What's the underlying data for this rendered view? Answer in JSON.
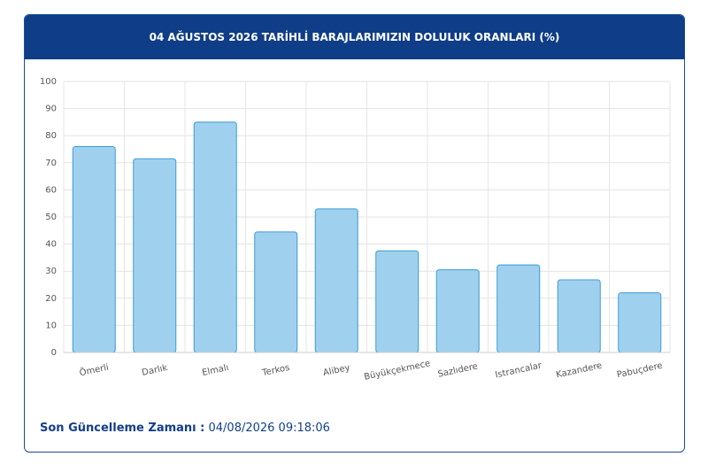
{
  "chart_data": {
    "type": "bar",
    "title": "04 AĞUSTOS 2026 TARİHLİ BARAJLARIMIZIN DOLULUK ORANLARI (%)",
    "categories": [
      "Ömerli",
      "Darlık",
      "Elmalı",
      "Terkos",
      "Alibey",
      "Büyükçekmece",
      "Sazlıdere",
      "Istrancalar",
      "Kazandere",
      "Pabuçdere"
    ],
    "values": [
      76,
      71.5,
      85,
      44.5,
      53,
      37.5,
      30.5,
      32.3,
      26.8,
      22
    ],
    "color": "#9fd1ee",
    "ylim": [
      0,
      100
    ],
    "yticks": [
      0,
      10,
      20,
      30,
      40,
      50,
      60,
      70,
      80,
      90,
      100
    ],
    "grid": true
  },
  "footer": {
    "label": "Son Güncelleme Zamanı :",
    "value": "04/08/2026 09:18:06"
  }
}
